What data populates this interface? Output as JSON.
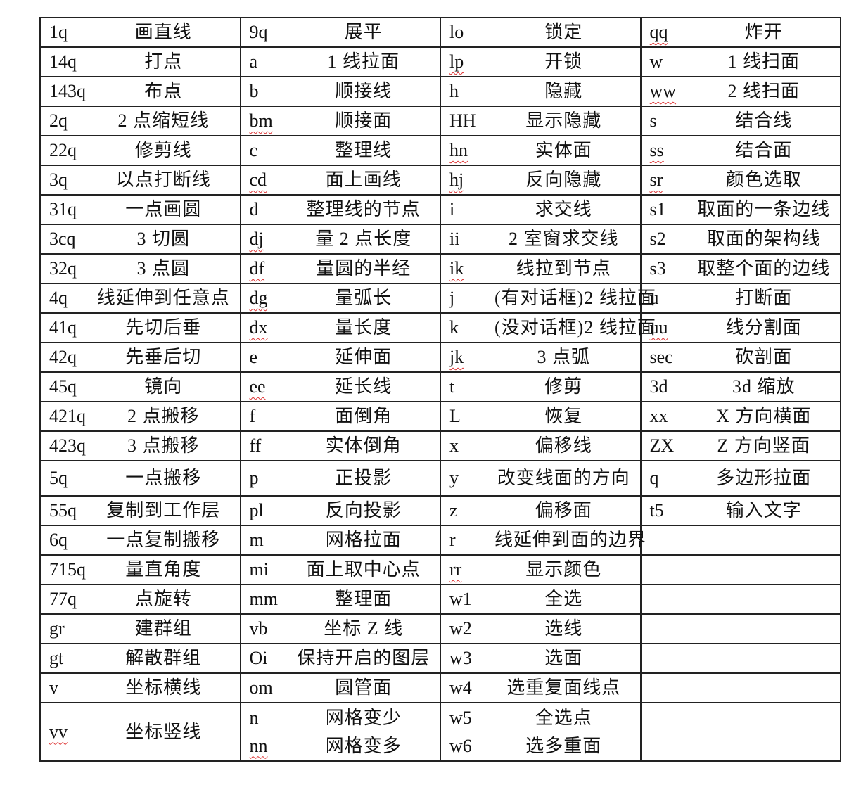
{
  "rows": [
    [
      [
        {
          "code": "1q",
          "desc": "画直线"
        }
      ],
      [
        {
          "code": "9q",
          "desc": "展平"
        }
      ],
      [
        {
          "code": "lo",
          "desc": "锁定"
        }
      ],
      [
        {
          "code": "qq",
          "desc": "炸开",
          "mark": true
        }
      ]
    ],
    [
      [
        {
          "code": "14q",
          "desc": "打点"
        }
      ],
      [
        {
          "code": "a",
          "desc": "1 线拉面"
        }
      ],
      [
        {
          "code": "lp",
          "desc": "开锁",
          "mark": true
        }
      ],
      [
        {
          "code": "w",
          "desc": "1 线扫面"
        }
      ]
    ],
    [
      [
        {
          "code": "143q",
          "desc": "布点"
        }
      ],
      [
        {
          "code": "b",
          "desc": "顺接线"
        }
      ],
      [
        {
          "code": "h",
          "desc": "隐藏"
        }
      ],
      [
        {
          "code": "ww",
          "desc": "2 线扫面",
          "mark": true
        }
      ]
    ],
    [
      [
        {
          "code": "2q",
          "desc": "2 点缩短线"
        }
      ],
      [
        {
          "code": "bm",
          "desc": "顺接面",
          "mark": true
        }
      ],
      [
        {
          "code": "HH",
          "desc": "显示隐藏"
        }
      ],
      [
        {
          "code": "s",
          "desc": "结合线"
        }
      ]
    ],
    [
      [
        {
          "code": "22q",
          "desc": "修剪线"
        }
      ],
      [
        {
          "code": "c",
          "desc": "整理线"
        }
      ],
      [
        {
          "code": "hn",
          "desc": "实体面",
          "mark": true
        }
      ],
      [
        {
          "code": "ss",
          "desc": "结合面",
          "mark": true
        }
      ]
    ],
    [
      [
        {
          "code": "3q",
          "desc": "以点打断线"
        }
      ],
      [
        {
          "code": "cd",
          "desc": "面上画线",
          "mark": true
        }
      ],
      [
        {
          "code": "hj",
          "desc": "反向隐藏",
          "mark": true
        }
      ],
      [
        {
          "code": "sr",
          "desc": "颜色选取",
          "mark": true
        }
      ]
    ],
    [
      [
        {
          "code": "31q",
          "desc": "一点画圆"
        }
      ],
      [
        {
          "code": "d",
          "desc": "整理线的节点"
        }
      ],
      [
        {
          "code": "i",
          "desc": "求交线"
        }
      ],
      [
        {
          "code": "s1",
          "desc": "取面的一条边线"
        }
      ]
    ],
    [
      [
        {
          "code": "3cq",
          "desc": "3 切圆"
        }
      ],
      [
        {
          "code": "dj",
          "desc": "量 2 点长度",
          "mark": true
        }
      ],
      [
        {
          "code": "ii",
          "desc": "2 室窗求交线"
        }
      ],
      [
        {
          "code": "s2",
          "desc": "取面的架构线"
        }
      ]
    ],
    [
      [
        {
          "code": "32q",
          "desc": "3 点圆"
        }
      ],
      [
        {
          "code": "df",
          "desc": "量圆的半经",
          "mark": true
        }
      ],
      [
        {
          "code": "ik",
          "desc": "线拉到节点",
          "mark": true
        }
      ],
      [
        {
          "code": "s3",
          "desc": "取整个面的边线"
        }
      ]
    ],
    [
      [
        {
          "code": "4q",
          "desc": "线延伸到任意点"
        }
      ],
      [
        {
          "code": "dg",
          "desc": "量弧长",
          "mark": true
        }
      ],
      [
        {
          "code": "j",
          "desc": "(有对话框)2 线拉面"
        }
      ],
      [
        {
          "code": "u",
          "desc": "打断面"
        }
      ]
    ],
    [
      [
        {
          "code": "41q",
          "desc": "先切后垂"
        }
      ],
      [
        {
          "code": "dx",
          "desc": "量长度",
          "mark": true
        }
      ],
      [
        {
          "code": "k",
          "desc": "(没对话框)2 线拉面"
        }
      ],
      [
        {
          "code": "uu",
          "desc": "线分割面",
          "mark": true
        }
      ]
    ],
    [
      [
        {
          "code": "42q",
          "desc": "先垂后切"
        }
      ],
      [
        {
          "code": "e",
          "desc": "延伸面"
        }
      ],
      [
        {
          "code": "jk",
          "desc": "3 点弧",
          "mark": true
        }
      ],
      [
        {
          "code": "sec",
          "desc": "砍剖面"
        }
      ]
    ],
    [
      [
        {
          "code": "45q",
          "desc": "镜向"
        }
      ],
      [
        {
          "code": "ee",
          "desc": "延长线",
          "mark": true
        }
      ],
      [
        {
          "code": "t",
          "desc": "修剪"
        }
      ],
      [
        {
          "code": "3d",
          "desc": "3d 缩放"
        }
      ]
    ],
    [
      [
        {
          "code": "421q",
          "desc": "2 点搬移"
        }
      ],
      [
        {
          "code": "f",
          "desc": "面倒角"
        }
      ],
      [
        {
          "code": "L",
          "desc": "恢复"
        }
      ],
      [
        {
          "code": "xx",
          "desc": "X 方向横面"
        }
      ]
    ],
    [
      [
        {
          "code": "423q",
          "desc": "3 点搬移"
        }
      ],
      [
        {
          "code": "ff",
          "desc": "实体倒角"
        }
      ],
      [
        {
          "code": "x",
          "desc": "偏移线"
        }
      ],
      [
        {
          "code": "ZX",
          "desc": "Z 方向竖面"
        }
      ]
    ],
    [
      [
        {
          "code": "5q",
          "desc": "一点搬移"
        }
      ],
      [
        {
          "code": "p",
          "desc": "正投影"
        }
      ],
      [
        {
          "code": "y",
          "desc": "改变线面的方向"
        }
      ],
      [
        {
          "code": "q",
          "desc": "多边形拉面"
        }
      ]
    ],
    [
      [
        {
          "code": "55q",
          "desc": "复制到工作层"
        }
      ],
      [
        {
          "code": "pl",
          "desc": "反向投影"
        }
      ],
      [
        {
          "code": "z",
          "desc": "偏移面"
        }
      ],
      [
        {
          "code": "t5",
          "desc": "输入文字"
        }
      ]
    ],
    [
      [
        {
          "code": "6q",
          "desc": "一点复制搬移"
        }
      ],
      [
        {
          "code": "m",
          "desc": "网格拉面"
        }
      ],
      [
        {
          "code": "r",
          "desc": "线延伸到面的边界"
        }
      ],
      []
    ],
    [
      [
        {
          "code": "715q",
          "desc": "量直角度"
        }
      ],
      [
        {
          "code": "mi",
          "desc": "面上取中心点"
        }
      ],
      [
        {
          "code": "rr",
          "desc": "显示颜色",
          "mark": true
        }
      ],
      []
    ],
    [
      [
        {
          "code": "77q",
          "desc": "点旋转"
        }
      ],
      [
        {
          "code": "mm",
          "desc": "整理面"
        }
      ],
      [
        {
          "code": "w1",
          "desc": "全选"
        }
      ],
      []
    ],
    [
      [
        {
          "code": "gr",
          "desc": "建群组"
        }
      ],
      [
        {
          "code": "vb",
          "desc": "坐标 Z 线"
        }
      ],
      [
        {
          "code": "w2",
          "desc": "选线"
        }
      ],
      []
    ],
    [
      [
        {
          "code": "gt",
          "desc": "解散群组"
        }
      ],
      [
        {
          "code": "Oi",
          "desc": "保持开启的图层"
        }
      ],
      [
        {
          "code": "w3",
          "desc": "选面"
        }
      ],
      []
    ],
    [
      [
        {
          "code": "v",
          "desc": "坐标横线"
        }
      ],
      [
        {
          "code": "om",
          "desc": "圆管面"
        }
      ],
      [
        {
          "code": "w4",
          "desc": "选重复面线点"
        }
      ],
      []
    ],
    [
      [
        {
          "code": "vv",
          "desc": "坐标竖线",
          "mark": true
        }
      ],
      [
        {
          "code": "n",
          "desc": "网格变少"
        },
        {
          "code": "nn",
          "desc": "网格变多",
          "mark": true
        }
      ],
      [
        {
          "code": "w5",
          "desc": "全选点"
        },
        {
          "code": "w6",
          "desc": "选多重面"
        }
      ],
      []
    ]
  ]
}
